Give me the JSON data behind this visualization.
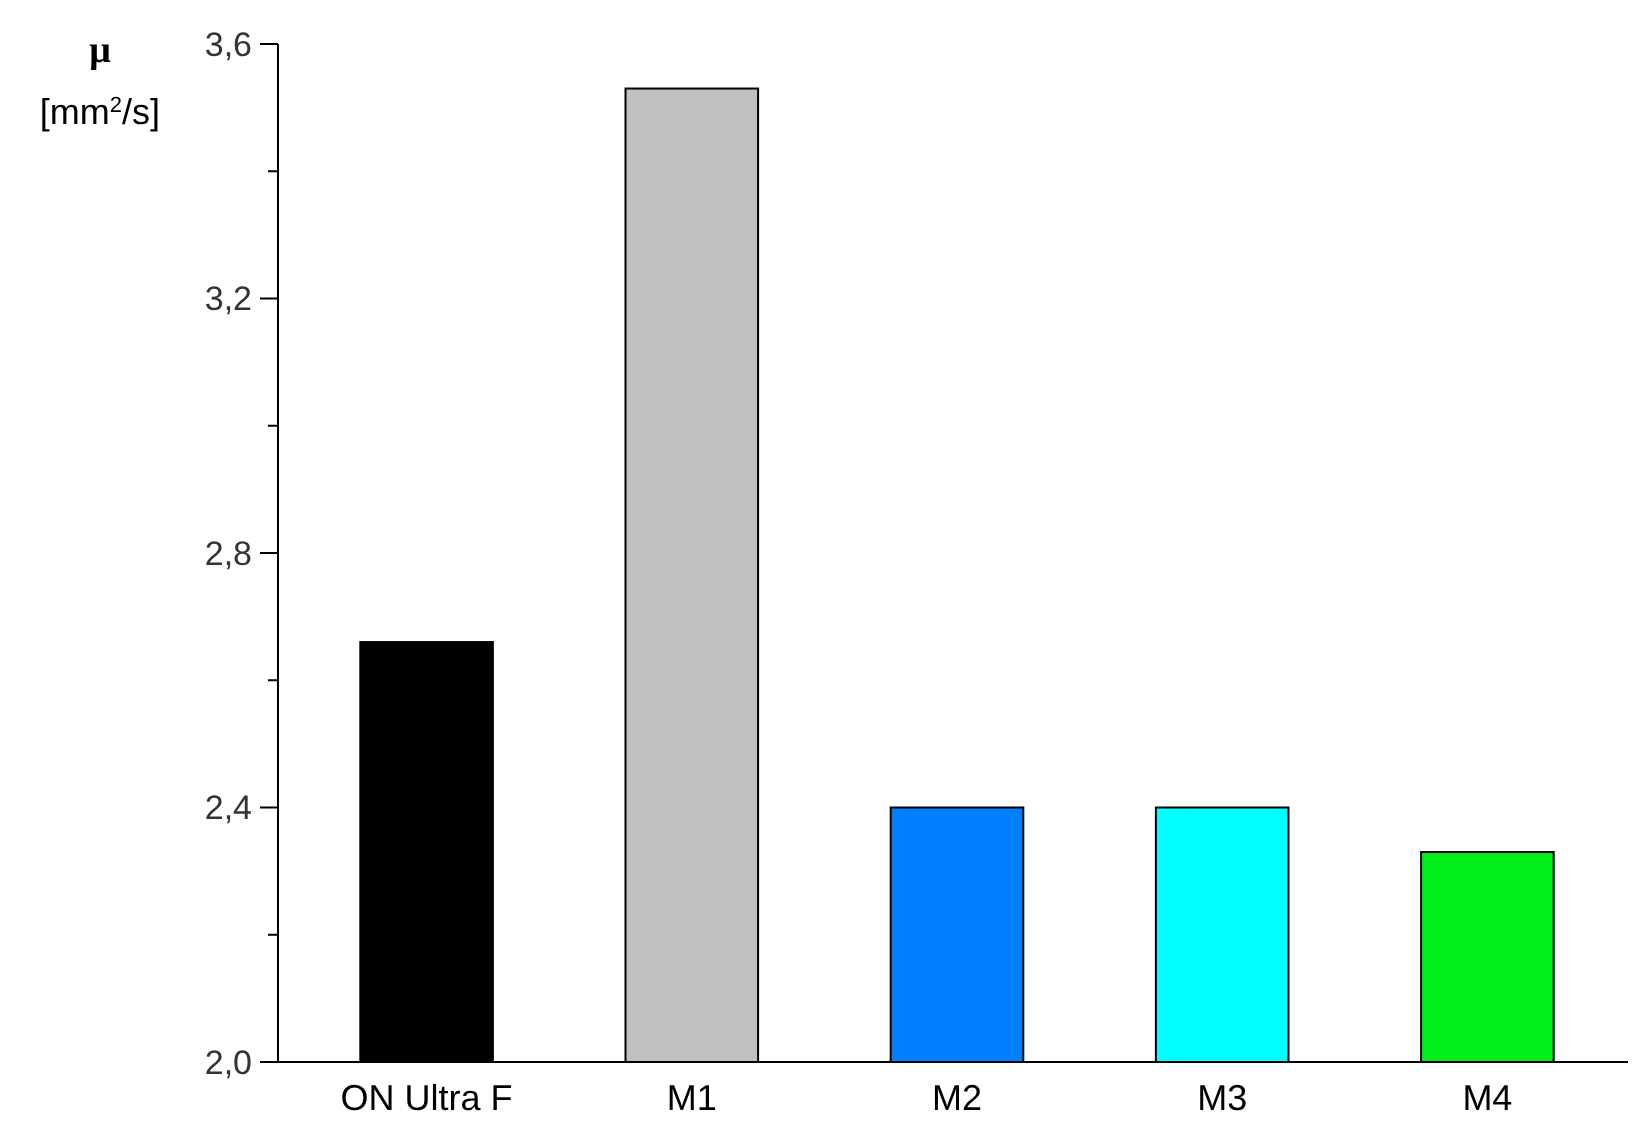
{
  "chart_data": {
    "type": "bar",
    "ylabel": "μ [mm$^{2}$/s]",
    "categories": [
      "ON Ultra F",
      "M1",
      "M2",
      "M3",
      "M4"
    ],
    "values": [
      2.66,
      3.53,
      2.4,
      2.4,
      2.33
    ],
    "colors": [
      "#000000",
      "#c0c0c0",
      "#0080ff",
      "#00ffff",
      "#00ee1a"
    ],
    "ylim": [
      2.0,
      3.6
    ],
    "yticks": [
      {
        "value": 2.0,
        "label": "2,0"
      },
      {
        "value": 2.2,
        "label": null
      },
      {
        "value": 2.4,
        "label": "2,4"
      },
      {
        "value": 2.6,
        "label": null
      },
      {
        "value": 2.8,
        "label": "2,8"
      },
      {
        "value": 3.0,
        "label": null
      },
      {
        "value": 3.2,
        "label": "3,2"
      },
      {
        "value": 3.4,
        "label": null
      },
      {
        "value": 3.6,
        "label": "3,6"
      }
    ]
  }
}
